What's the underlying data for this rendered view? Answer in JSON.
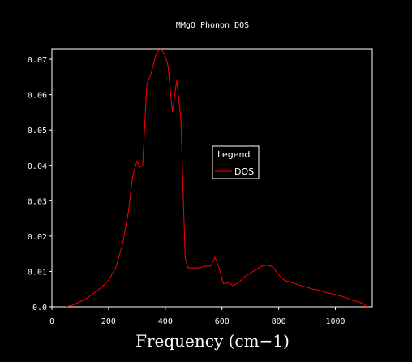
{
  "chart_data": {
    "type": "line",
    "title": "MMgO Phonon DOS",
    "xlabel": "Frequency (cm−1)",
    "ylabel": "",
    "xlim": [
      0,
      1130
    ],
    "ylim": [
      0,
      0.073
    ],
    "xticks": [
      {
        "value": 0,
        "label": "0"
      },
      {
        "value": 200,
        "label": "200"
      },
      {
        "value": 400,
        "label": "400"
      },
      {
        "value": 600,
        "label": "600"
      },
      {
        "value": 800,
        "label": "800"
      },
      {
        "value": 1000,
        "label": "1000"
      }
    ],
    "yticks": [
      {
        "value": 0,
        "label": "0.0"
      },
      {
        "value": 0.01,
        "label": "0.01"
      },
      {
        "value": 0.02,
        "label": "0.02"
      },
      {
        "value": 0.03,
        "label": "0.03"
      },
      {
        "value": 0.04,
        "label": "0.04"
      },
      {
        "value": 0.05,
        "label": "0.05"
      },
      {
        "value": 0.06,
        "label": "0.06"
      },
      {
        "value": 0.07,
        "label": "0.07"
      }
    ],
    "grid": false,
    "legend": {
      "title": "Legend",
      "placement": "center"
    },
    "series": [
      {
        "name": "DOS",
        "color": "#ff0000",
        "x": [
          50,
          75,
          100,
          125,
          150,
          175,
          200,
          225,
          250,
          270,
          285,
          300,
          310,
          320,
          335,
          350,
          370,
          385,
          400,
          410,
          425,
          440,
          455,
          470,
          480,
          490,
          505,
          520,
          540,
          560,
          575,
          590,
          605,
          620,
          640,
          660,
          680,
          700,
          720,
          740,
          760,
          780,
          800,
          820,
          840,
          860,
          880,
          900,
          920,
          940,
          960,
          980,
          1000,
          1020,
          1040,
          1060,
          1080,
          1100,
          1110
        ],
        "y": [
          0.0,
          0.0005,
          0.0015,
          0.0025,
          0.004,
          0.0055,
          0.0075,
          0.011,
          0.018,
          0.027,
          0.037,
          0.0412,
          0.0395,
          0.04,
          0.063,
          0.066,
          0.072,
          0.073,
          0.071,
          0.068,
          0.055,
          0.064,
          0.0535,
          0.014,
          0.011,
          0.011,
          0.011,
          0.011,
          0.0115,
          0.0115,
          0.014,
          0.011,
          0.0065,
          0.0068,
          0.006,
          0.007,
          0.0085,
          0.0095,
          0.0105,
          0.0115,
          0.0118,
          0.0112,
          0.009,
          0.0075,
          0.007,
          0.0065,
          0.006,
          0.0055,
          0.005,
          0.0048,
          0.0042,
          0.0038,
          0.0035,
          0.003,
          0.0025,
          0.0018,
          0.0015,
          0.0008,
          0.0
        ]
      }
    ]
  }
}
